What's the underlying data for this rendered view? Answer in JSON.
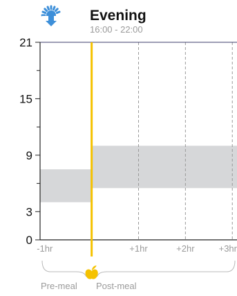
{
  "header": {
    "title": "Evening",
    "subtitle": "16:00 - 22:00",
    "icon": "sunset-icon",
    "icon_color": "#3d8fd9"
  },
  "phases": {
    "pre_label": "Pre-meal",
    "post_label": "Post-meal",
    "meal_icon": "apple-icon",
    "meal_color": "#f5c200"
  },
  "colors": {
    "axis": "#3b3b6b",
    "meal_line": "#f5c200",
    "range_fill": "#d6d7d9",
    "grid": "#999999"
  },
  "chart_data": {
    "type": "area",
    "title": "Evening",
    "subtitle": "16:00 - 22:00",
    "xlabel": "",
    "ylabel": "",
    "ylim": [
      0,
      21
    ],
    "xlim": [
      -1.1,
      3.1
    ],
    "yticks": [
      0,
      3,
      9,
      15,
      21
    ],
    "yticks_minor": [
      6,
      12,
      18
    ],
    "xticks": [
      {
        "x": -1,
        "label": "-1hr"
      },
      {
        "x": 1,
        "label": "+1hr"
      },
      {
        "x": 2,
        "label": "+2hr"
      },
      {
        "x": 3,
        "label": "+3hr"
      }
    ],
    "meal_time": 0,
    "vertical_grid": [
      1,
      2,
      3
    ],
    "grid": "dashed vertical lines at hour marks",
    "target_ranges": [
      {
        "phase": "pre-meal",
        "x_start": -1.1,
        "x_end": 0,
        "y_low": 4,
        "y_high": 7.5
      },
      {
        "phase": "post-meal",
        "x_start": 0,
        "x_end": 3.1,
        "y_low": 5.5,
        "y_high": 10
      }
    ]
  }
}
